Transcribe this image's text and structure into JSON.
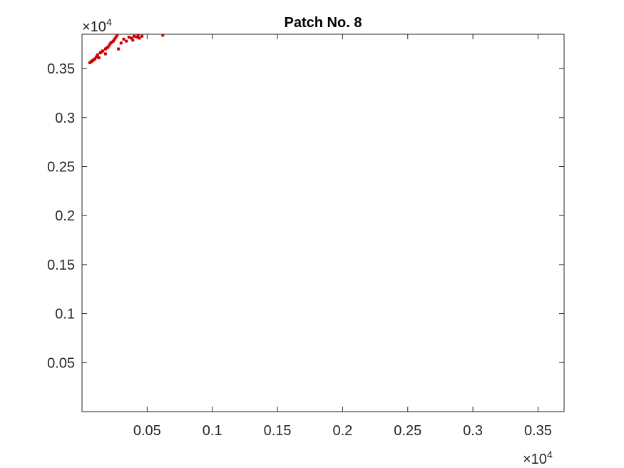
{
  "chart_data": {
    "type": "scatter",
    "title": "Patch No. 8",
    "xlabel": "",
    "ylabel": "",
    "x_multiplier": "×10",
    "x_multiplier_exp": "4",
    "y_multiplier": "×10",
    "y_multiplier_exp": "4",
    "xlim": [
      0,
      3700
    ],
    "ylim": [
      0,
      3850
    ],
    "xticks": [
      500,
      1000,
      1500,
      2000,
      2500,
      3000,
      3500
    ],
    "xtick_labels": [
      "0.05",
      "0.1",
      "0.15",
      "0.2",
      "0.25",
      "0.3",
      "0.35"
    ],
    "yticks": [
      500,
      1000,
      1500,
      2000,
      2500,
      3000,
      3500
    ],
    "ytick_labels": [
      "0.05",
      "0.1",
      "0.15",
      "0.2",
      "0.25",
      "0.3",
      "0.35"
    ],
    "grid": false,
    "legend": false,
    "series": [
      {
        "color": "#cc0000",
        "points": [
          [
            60,
            3560
          ],
          [
            80,
            3580
          ],
          [
            100,
            3600
          ],
          [
            120,
            3640
          ],
          [
            140,
            3660
          ],
          [
            160,
            3680
          ],
          [
            180,
            3700
          ],
          [
            200,
            3720
          ],
          [
            210,
            3740
          ],
          [
            220,
            3760
          ],
          [
            240,
            3780
          ],
          [
            250,
            3800
          ],
          [
            260,
            3820
          ],
          [
            270,
            3840
          ],
          [
            230,
            3770
          ],
          [
            190,
            3710
          ],
          [
            150,
            3670
          ],
          [
            110,
            3620
          ],
          [
            90,
            3590
          ],
          [
            70,
            3570
          ],
          [
            320,
            3800
          ],
          [
            340,
            3780
          ],
          [
            360,
            3820
          ],
          [
            380,
            3810
          ],
          [
            400,
            3830
          ],
          [
            420,
            3820
          ],
          [
            440,
            3810
          ],
          [
            460,
            3830
          ],
          [
            390,
            3790
          ],
          [
            430,
            3840
          ],
          [
            300,
            3760
          ],
          [
            620,
            3840
          ],
          [
            280,
            3700
          ],
          [
            180,
            3650
          ],
          [
            130,
            3610
          ]
        ]
      }
    ]
  }
}
